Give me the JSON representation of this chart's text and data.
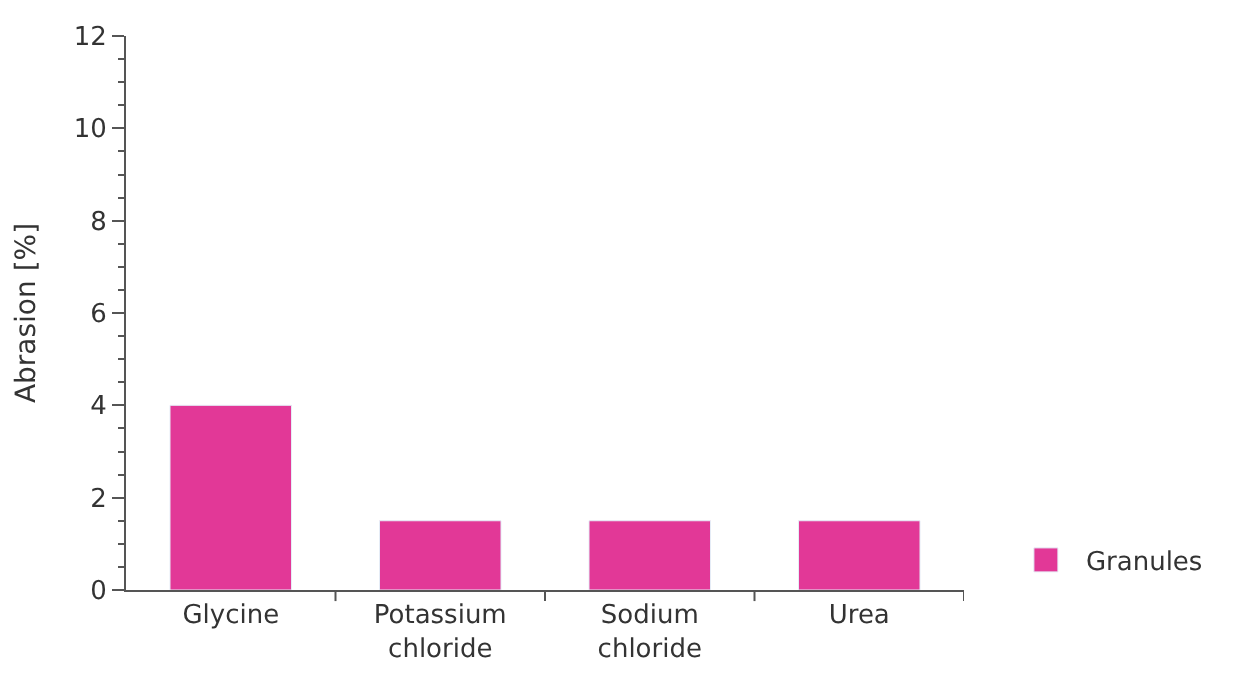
{
  "chart_data": {
    "type": "bar",
    "ylabel": "Abrasion [%]",
    "categories": [
      "Glycine",
      "Potassium chloride",
      "Sodium chloride",
      "Urea"
    ],
    "series": [
      {
        "name": "Granules",
        "color": "#e23897",
        "values": [
          4.0,
          1.5,
          1.5,
          1.5
        ]
      }
    ],
    "ylim": [
      0,
      12
    ],
    "yticks": [
      0,
      2,
      4,
      6,
      8,
      10,
      12
    ],
    "legend": "bottom right"
  }
}
